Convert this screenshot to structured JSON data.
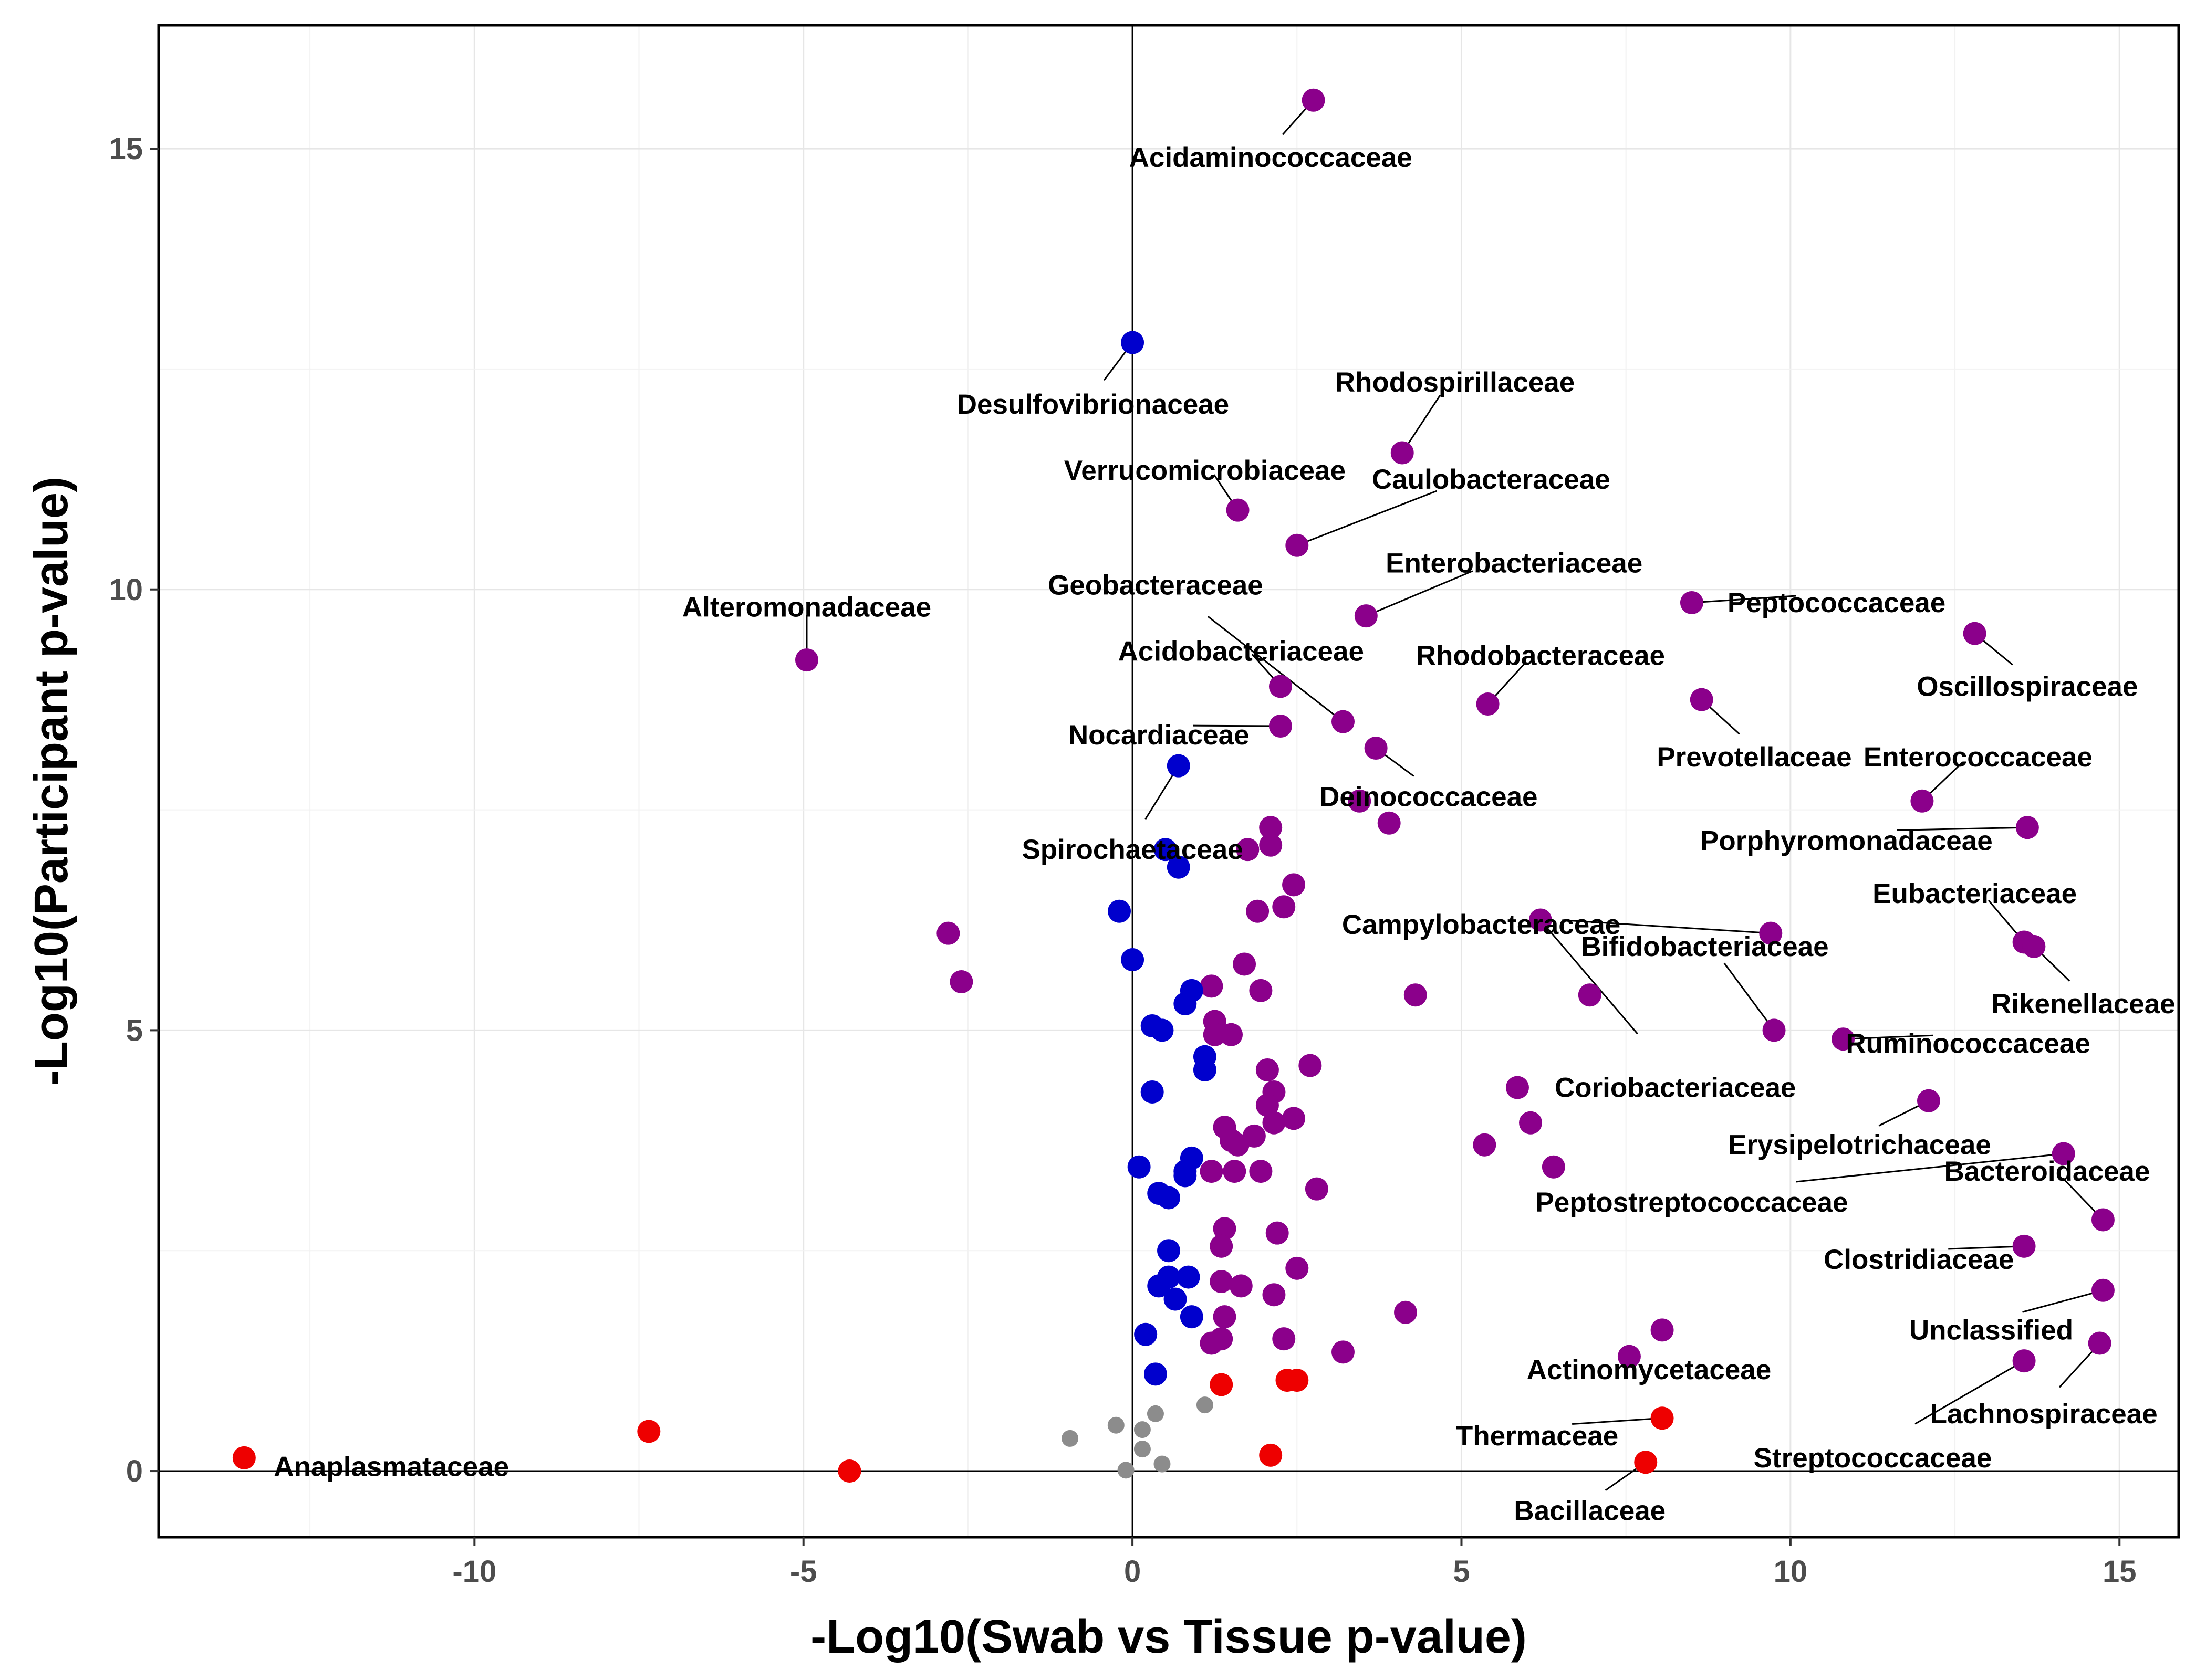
{
  "chart_data": {
    "type": "scatter",
    "title": "",
    "xlabel": "-Log10(Swab vs Tissue p-value)",
    "ylabel": "-Log10(Participant p-value)",
    "xlim": [
      -14.8,
      15.9
    ],
    "ylim": [
      -0.75,
      16.4
    ],
    "xticks": [
      -10,
      -5,
      0,
      5,
      10,
      15
    ],
    "yticks": [
      0,
      5,
      10,
      15
    ],
    "grid": true,
    "reference_lines": {
      "x": 0,
      "y": 0
    },
    "colors": {
      "purple": "#8B008B",
      "blue": "#0000CD",
      "red": "#EE0000",
      "gray": "#8C8C8C"
    },
    "labeled_points": [
      {
        "label": "Acidaminococcaceae",
        "x": 2.75,
        "y": 15.55,
        "color": "purple"
      },
      {
        "label": "Desulfovibrionaceae",
        "x": 0.0,
        "y": 12.8,
        "color": "blue"
      },
      {
        "label": "Rhodospirillaceae",
        "x": 4.1,
        "y": 11.55,
        "color": "purple"
      },
      {
        "label": "Verrucomicrobiaceae",
        "x": 1.6,
        "y": 10.9,
        "color": "purple"
      },
      {
        "label": "Caulobacteraceae",
        "x": 2.5,
        "y": 10.5,
        "color": "purple"
      },
      {
        "label": "Enterobacteriaceae",
        "x": 3.55,
        "y": 9.7,
        "color": "purple"
      },
      {
        "label": "Peptococcaceae",
        "x": 8.5,
        "y": 9.85,
        "color": "purple"
      },
      {
        "label": "Oscillospiraceae",
        "x": 12.8,
        "y": 9.5,
        "color": "purple"
      },
      {
        "label": "Alteromonadaceae",
        "x": -4.95,
        "y": 9.2,
        "color": "purple"
      },
      {
        "label": "Geobacteraceae",
        "x": 3.2,
        "y": 8.5,
        "color": "purple"
      },
      {
        "label": "Acidobacteriaceae",
        "x": 2.25,
        "y": 8.9,
        "color": "purple"
      },
      {
        "label": "Rhodobacteraceae",
        "x": 5.4,
        "y": 8.7,
        "color": "purple"
      },
      {
        "label": "Prevotellaceae",
        "x": 8.65,
        "y": 8.75,
        "color": "purple"
      },
      {
        "label": "Nocardiaceae",
        "x": 2.25,
        "y": 8.45,
        "color": "purple"
      },
      {
        "label": "Deinococcaceae",
        "x": 3.7,
        "y": 8.2,
        "color": "purple"
      },
      {
        "label": "Spirochaetaceae",
        "x": 0.7,
        "y": 8.0,
        "color": "blue"
      },
      {
        "label": "Enterococcaceae",
        "x": 12.0,
        "y": 7.6,
        "color": "purple"
      },
      {
        "label": "Porphyromonadaceae",
        "x": 13.6,
        "y": 7.3,
        "color": "purple"
      },
      {
        "label": "Campylobacteraceae",
        "x": 9.7,
        "y": 6.1,
        "color": "purple"
      },
      {
        "label": "Eubacteriaceae",
        "x": 13.55,
        "y": 6.0,
        "color": "purple"
      },
      {
        "label": "Rikenellaceae",
        "x": 13.7,
        "y": 5.95,
        "color": "purple"
      },
      {
        "label": "Bifidobacteriaceae",
        "x": 9.75,
        "y": 5.0,
        "color": "purple"
      },
      {
        "label": "Ruminococcaceae",
        "x": 10.8,
        "y": 4.9,
        "color": "purple"
      },
      {
        "label": "Coriobacteriaceae",
        "x": 6.2,
        "y": 6.25,
        "color": "purple"
      },
      {
        "label": "Erysipelotrichaceae",
        "x": 12.1,
        "y": 4.2,
        "color": "purple"
      },
      {
        "label": "Peptostreptococcaceae",
        "x": 14.15,
        "y": 3.6,
        "color": "purple"
      },
      {
        "label": "Bacteroidaceae",
        "x": 14.75,
        "y": 2.85,
        "color": "purple"
      },
      {
        "label": "Clostridiaceae",
        "x": 13.55,
        "y": 2.55,
        "color": "purple"
      },
      {
        "label": "Unclassified",
        "x": 14.75,
        "y": 2.05,
        "color": "purple"
      },
      {
        "label": "Actinomycetaceae",
        "x": 8.05,
        "y": 1.6,
        "color": "purple"
      },
      {
        "label": "Lachnospiraceae",
        "x": 14.7,
        "y": 1.45,
        "color": "purple"
      },
      {
        "label": "Streptococcaceae",
        "x": 13.55,
        "y": 1.25,
        "color": "purple"
      },
      {
        "label": "Thermaceae",
        "x": 8.05,
        "y": 0.6,
        "color": "red"
      },
      {
        "label": "Bacillaceae",
        "x": 7.8,
        "y": 0.1,
        "color": "red"
      },
      {
        "label": "Anaplasmataceae",
        "x": -13.5,
        "y": 0.15,
        "color": "red"
      }
    ],
    "points": [
      {
        "x": -2.8,
        "y": 6.1,
        "color": "purple"
      },
      {
        "x": -2.6,
        "y": 5.55,
        "color": "purple"
      },
      {
        "x": 7.55,
        "y": 1.3,
        "color": "purple"
      },
      {
        "x": 6.95,
        "y": 5.4,
        "color": "purple"
      },
      {
        "x": 5.85,
        "y": 4.35,
        "color": "purple"
      },
      {
        "x": 6.05,
        "y": 3.95,
        "color": "purple"
      },
      {
        "x": 5.35,
        "y": 3.7,
        "color": "purple"
      },
      {
        "x": 6.4,
        "y": 3.45,
        "color": "purple"
      },
      {
        "x": 4.3,
        "y": 5.4,
        "color": "purple"
      },
      {
        "x": 4.15,
        "y": 1.8,
        "color": "purple"
      },
      {
        "x": 3.45,
        "y": 7.6,
        "color": "purple"
      },
      {
        "x": 3.9,
        "y": 7.35,
        "color": "purple"
      },
      {
        "x": 3.2,
        "y": 1.35,
        "color": "purple"
      },
      {
        "x": 2.1,
        "y": 7.3,
        "color": "purple"
      },
      {
        "x": 2.1,
        "y": 7.1,
        "color": "purple"
      },
      {
        "x": 1.75,
        "y": 7.05,
        "color": "purple"
      },
      {
        "x": 2.45,
        "y": 6.65,
        "color": "purple"
      },
      {
        "x": 2.3,
        "y": 6.4,
        "color": "purple"
      },
      {
        "x": 1.9,
        "y": 6.35,
        "color": "purple"
      },
      {
        "x": 1.7,
        "y": 5.75,
        "color": "purple"
      },
      {
        "x": 1.2,
        "y": 5.5,
        "color": "purple"
      },
      {
        "x": 1.95,
        "y": 5.45,
        "color": "purple"
      },
      {
        "x": 1.25,
        "y": 5.1,
        "color": "purple"
      },
      {
        "x": 1.25,
        "y": 4.95,
        "color": "purple"
      },
      {
        "x": 1.5,
        "y": 4.95,
        "color": "purple"
      },
      {
        "x": 2.7,
        "y": 4.6,
        "color": "purple"
      },
      {
        "x": 2.05,
        "y": 4.55,
        "color": "purple"
      },
      {
        "x": 2.15,
        "y": 4.3,
        "color": "purple"
      },
      {
        "x": 2.05,
        "y": 4.15,
        "color": "purple"
      },
      {
        "x": 2.45,
        "y": 4.0,
        "color": "purple"
      },
      {
        "x": 2.15,
        "y": 3.95,
        "color": "purple"
      },
      {
        "x": 1.4,
        "y": 3.9,
        "color": "purple"
      },
      {
        "x": 1.85,
        "y": 3.8,
        "color": "purple"
      },
      {
        "x": 1.5,
        "y": 3.75,
        "color": "purple"
      },
      {
        "x": 1.6,
        "y": 3.7,
        "color": "purple"
      },
      {
        "x": 1.2,
        "y": 3.4,
        "color": "purple"
      },
      {
        "x": 1.55,
        "y": 3.4,
        "color": "purple"
      },
      {
        "x": 1.95,
        "y": 3.4,
        "color": "purple"
      },
      {
        "x": 2.8,
        "y": 3.2,
        "color": "purple"
      },
      {
        "x": 1.4,
        "y": 2.75,
        "color": "purple"
      },
      {
        "x": 2.2,
        "y": 2.7,
        "color": "purple"
      },
      {
        "x": 1.35,
        "y": 2.55,
        "color": "purple"
      },
      {
        "x": 2.5,
        "y": 2.3,
        "color": "purple"
      },
      {
        "x": 1.35,
        "y": 2.15,
        "color": "purple"
      },
      {
        "x": 1.65,
        "y": 2.1,
        "color": "purple"
      },
      {
        "x": 2.15,
        "y": 2.0,
        "color": "purple"
      },
      {
        "x": 1.4,
        "y": 1.75,
        "color": "purple"
      },
      {
        "x": 1.35,
        "y": 1.5,
        "color": "purple"
      },
      {
        "x": 1.2,
        "y": 1.45,
        "color": "purple"
      },
      {
        "x": 2.3,
        "y": 1.5,
        "color": "purple"
      },
      {
        "x": -0.2,
        "y": 6.35,
        "color": "blue"
      },
      {
        "x": 0.5,
        "y": 7.05,
        "color": "blue"
      },
      {
        "x": 0.7,
        "y": 6.85,
        "color": "blue"
      },
      {
        "x": 0.0,
        "y": 5.8,
        "color": "blue"
      },
      {
        "x": 0.9,
        "y": 5.45,
        "color": "blue"
      },
      {
        "x": 0.8,
        "y": 5.3,
        "color": "blue"
      },
      {
        "x": 0.3,
        "y": 5.05,
        "color": "blue"
      },
      {
        "x": 0.45,
        "y": 5.0,
        "color": "blue"
      },
      {
        "x": 1.1,
        "y": 4.7,
        "color": "blue"
      },
      {
        "x": 1.1,
        "y": 4.55,
        "color": "blue"
      },
      {
        "x": 0.3,
        "y": 4.3,
        "color": "blue"
      },
      {
        "x": 0.9,
        "y": 3.55,
        "color": "blue"
      },
      {
        "x": 0.1,
        "y": 3.45,
        "color": "blue"
      },
      {
        "x": 0.8,
        "y": 3.4,
        "color": "blue"
      },
      {
        "x": 0.8,
        "y": 3.35,
        "color": "blue"
      },
      {
        "x": 0.4,
        "y": 3.15,
        "color": "blue"
      },
      {
        "x": 0.55,
        "y": 3.1,
        "color": "blue"
      },
      {
        "x": 0.55,
        "y": 2.5,
        "color": "blue"
      },
      {
        "x": 0.55,
        "y": 2.2,
        "color": "blue"
      },
      {
        "x": 0.85,
        "y": 2.2,
        "color": "blue"
      },
      {
        "x": 0.4,
        "y": 2.1,
        "color": "blue"
      },
      {
        "x": 0.65,
        "y": 1.95,
        "color": "blue"
      },
      {
        "x": 0.9,
        "y": 1.75,
        "color": "blue"
      },
      {
        "x": 0.2,
        "y": 1.55,
        "color": "blue"
      },
      {
        "x": 0.35,
        "y": 1.1,
        "color": "blue"
      },
      {
        "x": -7.35,
        "y": 0.45,
        "color": "red"
      },
      {
        "x": -4.3,
        "y": 0.0,
        "color": "red"
      },
      {
        "x": 1.35,
        "y": 0.98,
        "color": "red"
      },
      {
        "x": 2.35,
        "y": 1.03,
        "color": "red"
      },
      {
        "x": 2.5,
        "y": 1.03,
        "color": "red"
      },
      {
        "x": 2.1,
        "y": 0.18,
        "color": "red"
      },
      {
        "x": -0.95,
        "y": 0.37,
        "color": "gray"
      },
      {
        "x": -0.25,
        "y": 0.52,
        "color": "gray"
      },
      {
        "x": 0.15,
        "y": 0.47,
        "color": "gray"
      },
      {
        "x": 0.35,
        "y": 0.65,
        "color": "gray"
      },
      {
        "x": 0.15,
        "y": 0.25,
        "color": "gray"
      },
      {
        "x": 0.45,
        "y": 0.08,
        "color": "gray"
      },
      {
        "x": -0.1,
        "y": 0.01,
        "color": "gray"
      },
      {
        "x": 1.1,
        "y": 0.75,
        "color": "gray"
      }
    ]
  }
}
